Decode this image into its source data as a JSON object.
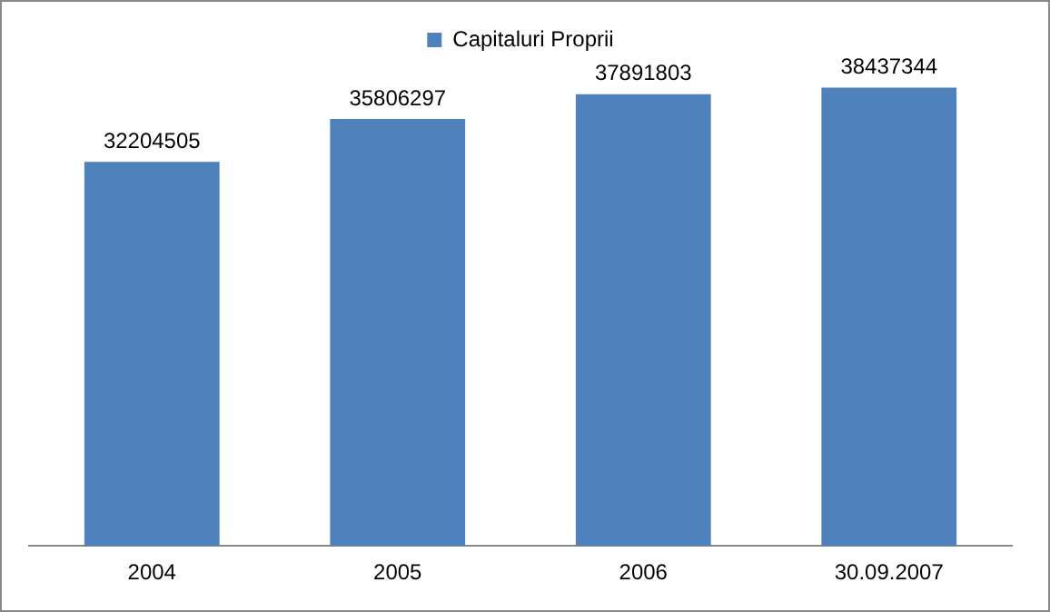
{
  "chart_data": {
    "type": "bar",
    "categories": [
      "2004",
      "2005",
      "2006",
      "30.09.2007"
    ],
    "series": [
      {
        "name": "Capitaluri Proprii",
        "color": "#4f81bd",
        "values": [
          32204505,
          35806297,
          37891803,
          38437344
        ]
      }
    ],
    "tick_labels": "x",
    "data_labels": true,
    "legend": "top",
    "grid": false
  }
}
